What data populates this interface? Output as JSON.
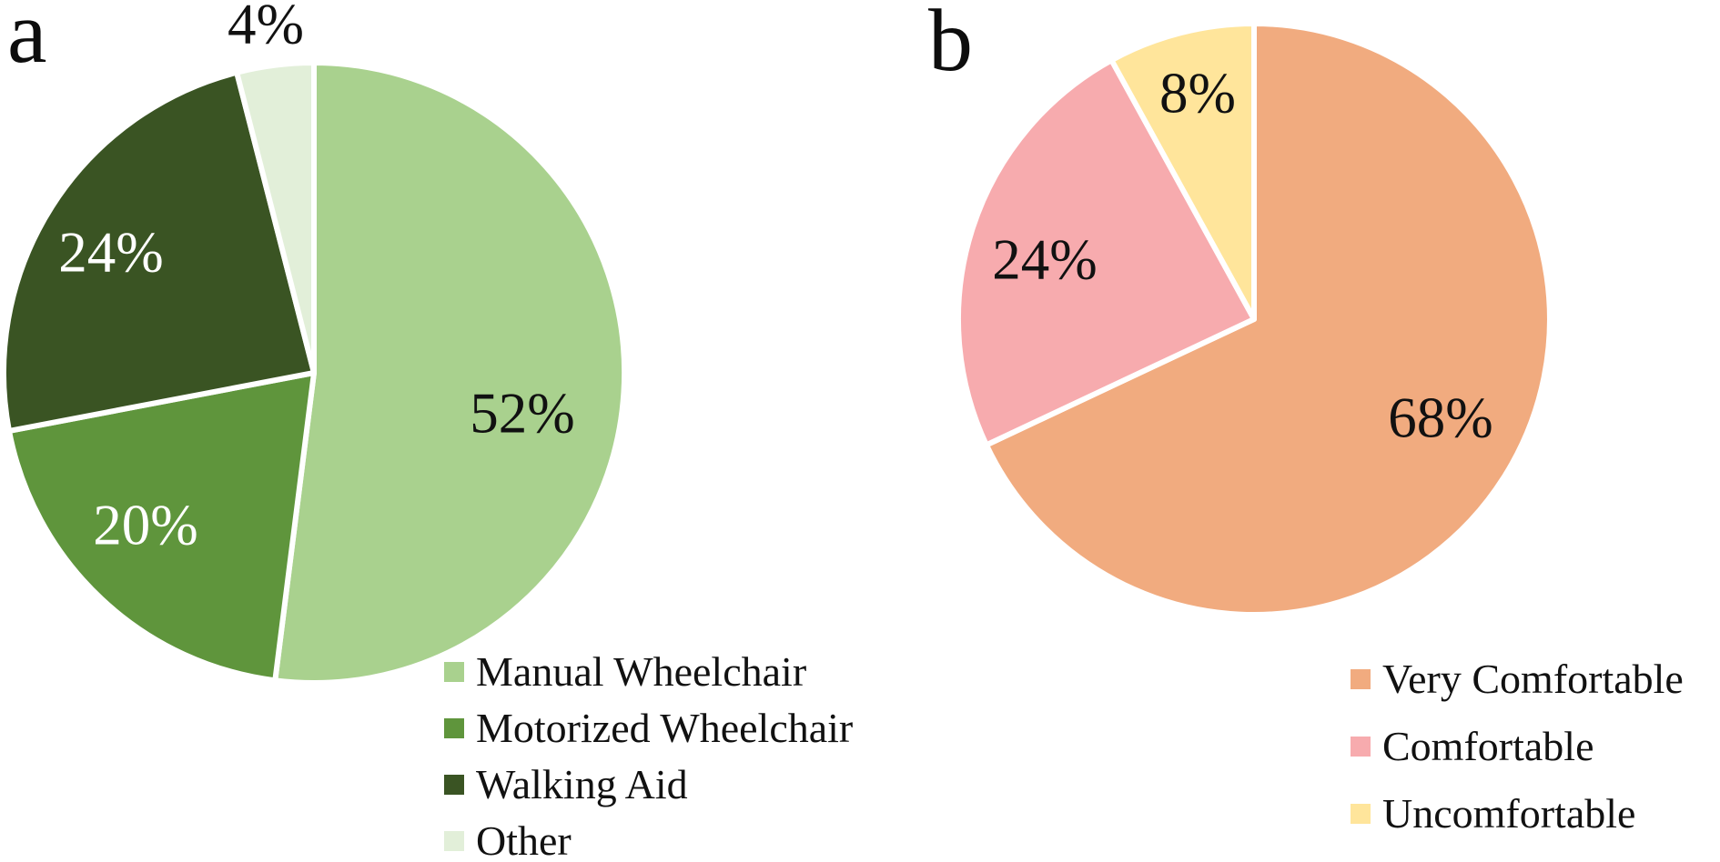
{
  "figure": {
    "background_color": "#ffffff",
    "text_color": "#111111"
  },
  "panels": [
    {
      "letter": "a"
    },
    {
      "letter": "b"
    }
  ],
  "chart_data": [
    {
      "type": "pie",
      "panel": "a",
      "categories": [
        "Manual Wheelchair",
        "Motorized Wheelchair",
        "Walking Aid",
        "Other"
      ],
      "values": [
        52,
        20,
        24,
        4
      ],
      "value_labels": [
        "52%",
        "20%",
        "24%",
        "4%"
      ],
      "colors": [
        "#a9d18e",
        "#5f953c",
        "#3a5423",
        "#e2efd9"
      ],
      "label_text_colors": [
        "#111111",
        "#ffffff",
        "#ffffff",
        "#111111"
      ],
      "border_color": "#ffffff",
      "start_angle_deg": 0,
      "direction": "clockwise",
      "legend_position": "bottom-right"
    },
    {
      "type": "pie",
      "panel": "b",
      "categories": [
        "Very Comfortable",
        "Comfortable",
        "Uncomfortable"
      ],
      "values": [
        68,
        24,
        8
      ],
      "value_labels": [
        "68%",
        "24%",
        "8%"
      ],
      "colors": [
        "#f1ab7f",
        "#f7abae",
        "#ffe59b"
      ],
      "label_text_colors": [
        "#111111",
        "#111111",
        "#111111"
      ],
      "border_color": "#ffffff",
      "start_angle_deg": 0,
      "direction": "clockwise",
      "legend_position": "bottom-right"
    }
  ]
}
